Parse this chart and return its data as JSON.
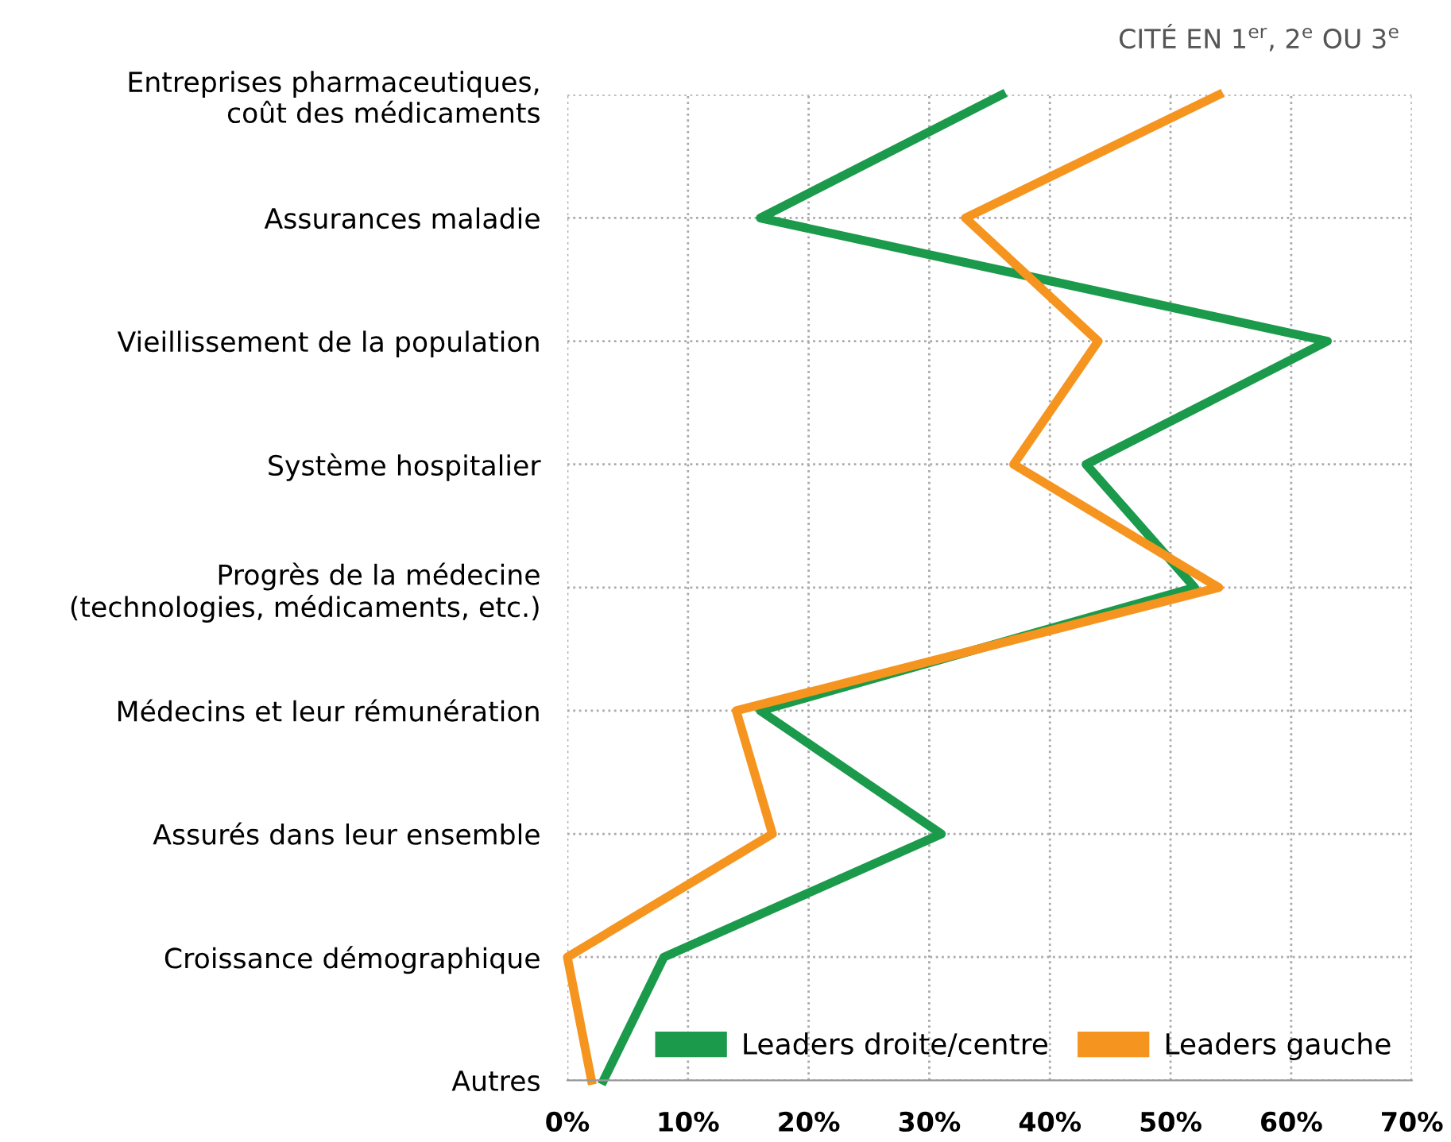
{
  "chart_data": {
    "type": "line",
    "orientation": "horizontal",
    "subtitle": "CITÉ EN 1$^{er}$, 2$^{e}$ OU 3$^{e}$",
    "categories": [
      "Entreprises pharmaceutiques,\ncoût des médicaments",
      "Assurances maladie",
      "Vieillissement de la population",
      "Système hospitalier",
      "Progrès de la médecine\n(technologies, médicaments, etc.)",
      "Médecins et leur rémunération",
      "Assurés dans leur ensemble",
      "Croissance démographique",
      "Autres"
    ],
    "series": [
      {
        "name": "Leaders droite/centre",
        "color": "#1a9a4a",
        "values": [
          36,
          16,
          63,
          43,
          52,
          16,
          31,
          8,
          3
        ]
      },
      {
        "name": "Leaders gauche",
        "color": "#f5951f",
        "values": [
          54,
          33,
          44,
          37,
          54,
          14,
          17,
          0,
          2
        ]
      }
    ],
    "xlim": [
      0,
      70
    ],
    "xticks": [
      {
        "value": 0,
        "label": "0%"
      },
      {
        "value": 10,
        "label": "10%"
      },
      {
        "value": 20,
        "label": "20%"
      },
      {
        "value": 30,
        "label": "30%"
      },
      {
        "value": 40,
        "label": "40%"
      },
      {
        "value": 50,
        "label": "50%"
      },
      {
        "value": 60,
        "label": "60%"
      },
      {
        "value": 70,
        "label": "70%"
      }
    ],
    "grid": true,
    "legend": "bottom right",
    "line_style": "solid",
    "marker": "none"
  }
}
